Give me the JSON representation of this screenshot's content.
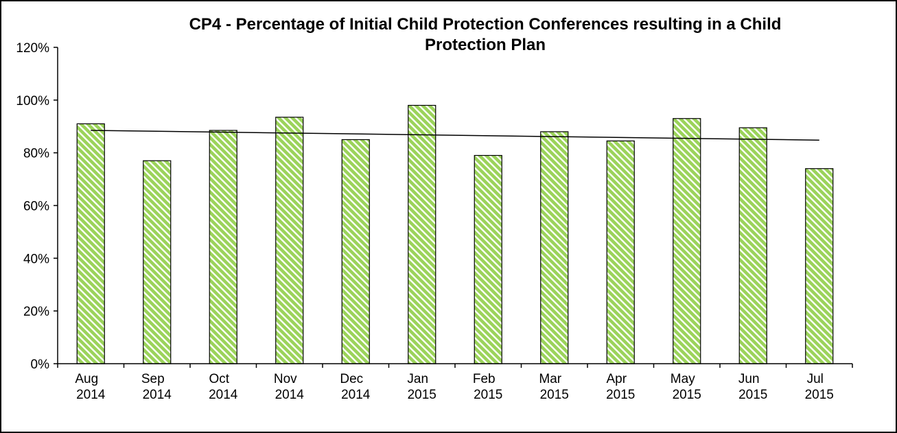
{
  "chart_data": {
    "type": "bar",
    "title_lines": [
      "CP4 - Percentage of Initial Child Protection Conferences resulting in a Child",
      "Protection Plan"
    ],
    "categories": [
      [
        "Aug",
        "2014"
      ],
      [
        "Sep",
        "2014"
      ],
      [
        "Oct",
        "2014"
      ],
      [
        "Nov",
        "2014"
      ],
      [
        "Dec",
        "2014"
      ],
      [
        "Jan",
        "2015"
      ],
      [
        "Feb",
        "2015"
      ],
      [
        "Mar",
        "2015"
      ],
      [
        "Apr",
        "2015"
      ],
      [
        "May",
        "2015"
      ],
      [
        "Jun",
        "2015"
      ],
      [
        "Jul",
        "2015"
      ]
    ],
    "values": [
      91,
      77,
      88.5,
      93.5,
      85,
      98,
      79,
      88,
      84.5,
      93,
      89.5,
      74
    ],
    "trendline": {
      "type": "linear",
      "start": 88.5,
      "end": 84.8
    },
    "ylim": [
      0,
      120
    ],
    "y_ticks": [
      0,
      20,
      40,
      60,
      80,
      100,
      120
    ],
    "y_tick_labels": [
      "0%",
      "20%",
      "40%",
      "60%",
      "80%",
      "100%",
      "120%"
    ],
    "grid": false,
    "legend": "none",
    "colors": {
      "bar_fill": "#9bd35a",
      "bar_stripe": "#ffffff",
      "bar_border": "#000000",
      "axis": "#000000",
      "trend": "#000000"
    }
  }
}
